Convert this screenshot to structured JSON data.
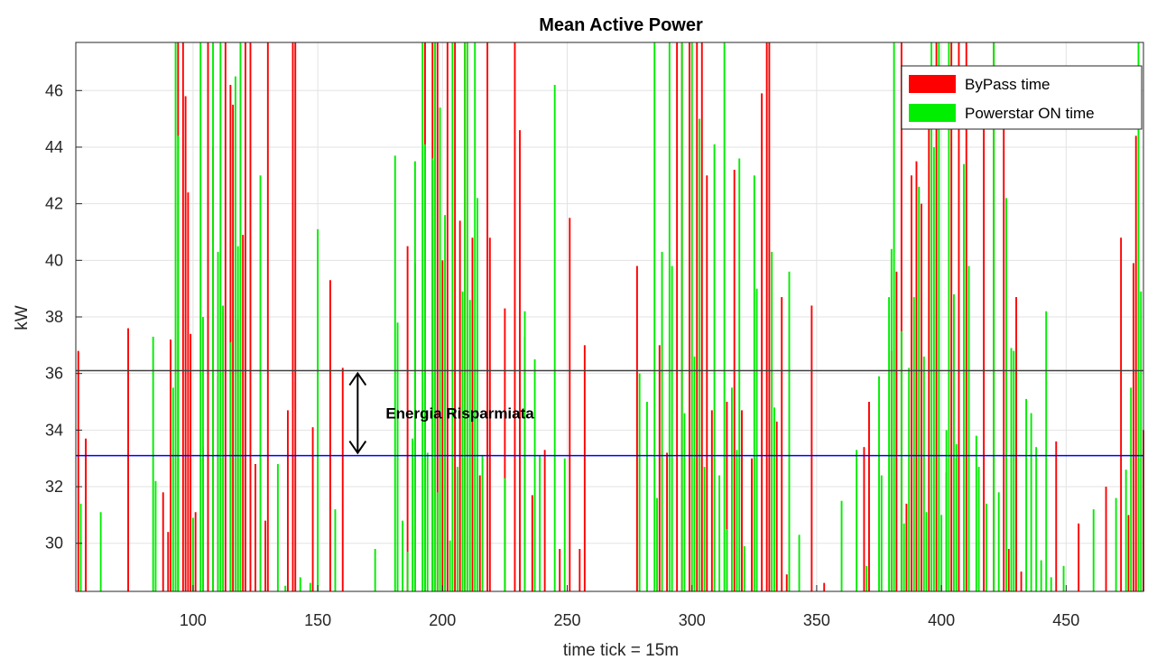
{
  "chart_data": {
    "type": "bar",
    "title": "Mean Active Power",
    "xlabel": "time tick = 15m",
    "ylabel": "kW",
    "xlim": [
      53,
      481
    ],
    "ylim": [
      28.3,
      47.7
    ],
    "xticks": [
      100,
      150,
      200,
      250,
      300,
      350,
      400,
      450
    ],
    "yticks": [
      30,
      32,
      34,
      36,
      38,
      40,
      42,
      44,
      46
    ],
    "grid": true,
    "legend_position": "top-right",
    "reference_lines": [
      {
        "value": 36.1,
        "color": "#404040"
      },
      {
        "value": 33.1,
        "color": "#0000ff"
      }
    ],
    "annotation": {
      "text": "Energia Risparmiata",
      "from": 36.1,
      "to": 33.1,
      "x": 166
    },
    "series": [
      {
        "name": "ByPass time",
        "color": "#ff0000",
        "points": [
          [
            54,
            36.8
          ],
          [
            57,
            33.7
          ],
          [
            74,
            37.6
          ],
          [
            88,
            31.8
          ],
          [
            90,
            30.4
          ],
          [
            91,
            37.2
          ],
          [
            94,
            47.7
          ],
          [
            96,
            47.7
          ],
          [
            97,
            45.8
          ],
          [
            98,
            42.4
          ],
          [
            99,
            37.4
          ],
          [
            101,
            31.1
          ],
          [
            104,
            33.4
          ],
          [
            106,
            47.7
          ],
          [
            108,
            44.0
          ],
          [
            110,
            35.9
          ],
          [
            113,
            47.7
          ],
          [
            115,
            46.2
          ],
          [
            116,
            45.5
          ],
          [
            118,
            37.9
          ],
          [
            120,
            40.9
          ],
          [
            121,
            47.7
          ],
          [
            123,
            47.7
          ],
          [
            125,
            32.8
          ],
          [
            129,
            30.8
          ],
          [
            130,
            47.7
          ],
          [
            138,
            34.7
          ],
          [
            140,
            47.7
          ],
          [
            141,
            47.7
          ],
          [
            148,
            34.1
          ],
          [
            155,
            39.3
          ],
          [
            160,
            36.2
          ],
          [
            186,
            40.5
          ],
          [
            189,
            39.9
          ],
          [
            193,
            47.7
          ],
          [
            196,
            47.7
          ],
          [
            198,
            47.7
          ],
          [
            200,
            40.0
          ],
          [
            202,
            47.7
          ],
          [
            205,
            47.7
          ],
          [
            207,
            41.4
          ],
          [
            209,
            47.7
          ],
          [
            212,
            40.8
          ],
          [
            215,
            32.4
          ],
          [
            218,
            47.7
          ],
          [
            219,
            40.8
          ],
          [
            225,
            38.3
          ],
          [
            229,
            47.7
          ],
          [
            231,
            44.6
          ],
          [
            233,
            37.3
          ],
          [
            236,
            31.7
          ],
          [
            241,
            33.3
          ],
          [
            247,
            29.8
          ],
          [
            251,
            41.5
          ],
          [
            255,
            29.8
          ],
          [
            257,
            37.0
          ],
          [
            278,
            39.8
          ],
          [
            287,
            37.0
          ],
          [
            290,
            33.2
          ],
          [
            294,
            47.7
          ],
          [
            296,
            47.7
          ],
          [
            299,
            47.7
          ],
          [
            302,
            47.7
          ],
          [
            304,
            47.7
          ],
          [
            306,
            43.0
          ],
          [
            308,
            34.7
          ],
          [
            314,
            35.0
          ],
          [
            317,
            43.2
          ],
          [
            320,
            34.7
          ],
          [
            324,
            33.0
          ],
          [
            328,
            45.9
          ],
          [
            330,
            47.7
          ],
          [
            331,
            47.7
          ],
          [
            334,
            34.3
          ],
          [
            336,
            38.7
          ],
          [
            338,
            28.9
          ],
          [
            348,
            38.4
          ],
          [
            353,
            28.6
          ],
          [
            369,
            33.4
          ],
          [
            371,
            35.0
          ],
          [
            380,
            36.8
          ],
          [
            382,
            39.6
          ],
          [
            384,
            47.7
          ],
          [
            386,
            31.4
          ],
          [
            388,
            43.0
          ],
          [
            390,
            43.5
          ],
          [
            392,
            42.0
          ],
          [
            395,
            44.9
          ],
          [
            398,
            47.7
          ],
          [
            402,
            32.5
          ],
          [
            404,
            47.7
          ],
          [
            407,
            47.7
          ],
          [
            410,
            47.7
          ],
          [
            417,
            45.7
          ],
          [
            421,
            47.7
          ],
          [
            425,
            44.7
          ],
          [
            427,
            29.8
          ],
          [
            430,
            38.7
          ],
          [
            432,
            29.0
          ],
          [
            446,
            33.6
          ],
          [
            455,
            30.7
          ],
          [
            466,
            32.0
          ],
          [
            472,
            40.8
          ],
          [
            475,
            31.0
          ],
          [
            477,
            39.9
          ],
          [
            478,
            44.4
          ],
          [
            481,
            34.0
          ]
        ]
      },
      {
        "name": "Powerstar ON time",
        "color": "#00ee00",
        "points": [
          [
            55,
            31.4
          ],
          [
            63,
            31.1
          ],
          [
            84,
            37.3
          ],
          [
            85,
            32.2
          ],
          [
            92,
            35.5
          ],
          [
            93,
            47.7
          ],
          [
            94,
            44.4
          ],
          [
            100,
            30.9
          ],
          [
            103,
            47.7
          ],
          [
            104,
            38.0
          ],
          [
            108,
            47.7
          ],
          [
            110,
            40.3
          ],
          [
            111,
            47.7
          ],
          [
            112,
            38.4
          ],
          [
            115,
            37.1
          ],
          [
            117,
            46.5
          ],
          [
            118,
            40.5
          ],
          [
            119,
            47.7
          ],
          [
            127,
            43.0
          ],
          [
            134,
            32.8
          ],
          [
            137,
            28.5
          ],
          [
            143,
            28.8
          ],
          [
            147,
            28.6
          ],
          [
            150,
            41.1
          ],
          [
            157,
            31.2
          ],
          [
            173,
            29.8
          ],
          [
            181,
            43.7
          ],
          [
            182,
            37.8
          ],
          [
            184,
            30.8
          ],
          [
            186,
            29.7
          ],
          [
            188,
            33.7
          ],
          [
            189,
            43.5
          ],
          [
            192,
            47.7
          ],
          [
            193,
            44.1
          ],
          [
            194,
            33.2
          ],
          [
            196,
            43.6
          ],
          [
            197,
            47.7
          ],
          [
            198,
            31.8
          ],
          [
            199,
            45.4
          ],
          [
            201,
            41.6
          ],
          [
            203,
            30.1
          ],
          [
            204,
            47.7
          ],
          [
            206,
            32.7
          ],
          [
            208,
            38.9
          ],
          [
            209,
            47.7
          ],
          [
            210,
            47.7
          ],
          [
            211,
            38.6
          ],
          [
            213,
            47.7
          ],
          [
            214,
            42.2
          ],
          [
            216,
            33.1
          ],
          [
            225,
            32.3
          ],
          [
            233,
            38.2
          ],
          [
            237,
            36.5
          ],
          [
            239,
            33.1
          ],
          [
            245,
            46.2
          ],
          [
            249,
            33.0
          ],
          [
            279,
            36.0
          ],
          [
            282,
            35.0
          ],
          [
            285,
            47.7
          ],
          [
            286,
            31.6
          ],
          [
            288,
            40.3
          ],
          [
            291,
            47.7
          ],
          [
            292,
            39.8
          ],
          [
            296,
            47.7
          ],
          [
            297,
            34.6
          ],
          [
            300,
            47.7
          ],
          [
            301,
            36.6
          ],
          [
            303,
            45.0
          ],
          [
            305,
            32.7
          ],
          [
            309,
            44.1
          ],
          [
            311,
            32.4
          ],
          [
            313,
            47.7
          ],
          [
            314,
            30.5
          ],
          [
            316,
            35.5
          ],
          [
            318,
            33.3
          ],
          [
            319,
            43.6
          ],
          [
            321,
            29.9
          ],
          [
            325,
            43.0
          ],
          [
            326,
            39.0
          ],
          [
            332,
            40.3
          ],
          [
            333,
            34.8
          ],
          [
            339,
            39.6
          ],
          [
            343,
            30.3
          ],
          [
            360,
            31.5
          ],
          [
            366,
            33.3
          ],
          [
            370,
            29.2
          ],
          [
            375,
            35.9
          ],
          [
            376,
            32.4
          ],
          [
            379,
            38.7
          ],
          [
            380,
            40.4
          ],
          [
            381,
            47.7
          ],
          [
            384,
            37.5
          ],
          [
            385,
            30.7
          ],
          [
            387,
            36.2
          ],
          [
            389,
            38.7
          ],
          [
            391,
            42.6
          ],
          [
            393,
            36.6
          ],
          [
            394,
            31.1
          ],
          [
            396,
            47.7
          ],
          [
            397,
            44.0
          ],
          [
            399,
            47.7
          ],
          [
            400,
            31.0
          ],
          [
            402,
            34.0
          ],
          [
            403,
            47.7
          ],
          [
            405,
            38.8
          ],
          [
            406,
            33.5
          ],
          [
            409,
            43.4
          ],
          [
            411,
            39.8
          ],
          [
            414,
            33.8
          ],
          [
            415,
            32.7
          ],
          [
            418,
            31.4
          ],
          [
            421,
            47.7
          ],
          [
            423,
            31.8
          ],
          [
            426,
            42.2
          ],
          [
            428,
            36.9
          ],
          [
            429,
            36.8
          ],
          [
            434,
            35.1
          ],
          [
            436,
            34.6
          ],
          [
            438,
            33.4
          ],
          [
            440,
            29.4
          ],
          [
            442,
            38.2
          ],
          [
            444,
            28.8
          ],
          [
            449,
            29.2
          ],
          [
            461,
            31.2
          ],
          [
            470,
            31.6
          ],
          [
            474,
            32.6
          ],
          [
            476,
            35.5
          ],
          [
            479,
            47.7
          ],
          [
            480,
            38.9
          ]
        ]
      }
    ]
  }
}
